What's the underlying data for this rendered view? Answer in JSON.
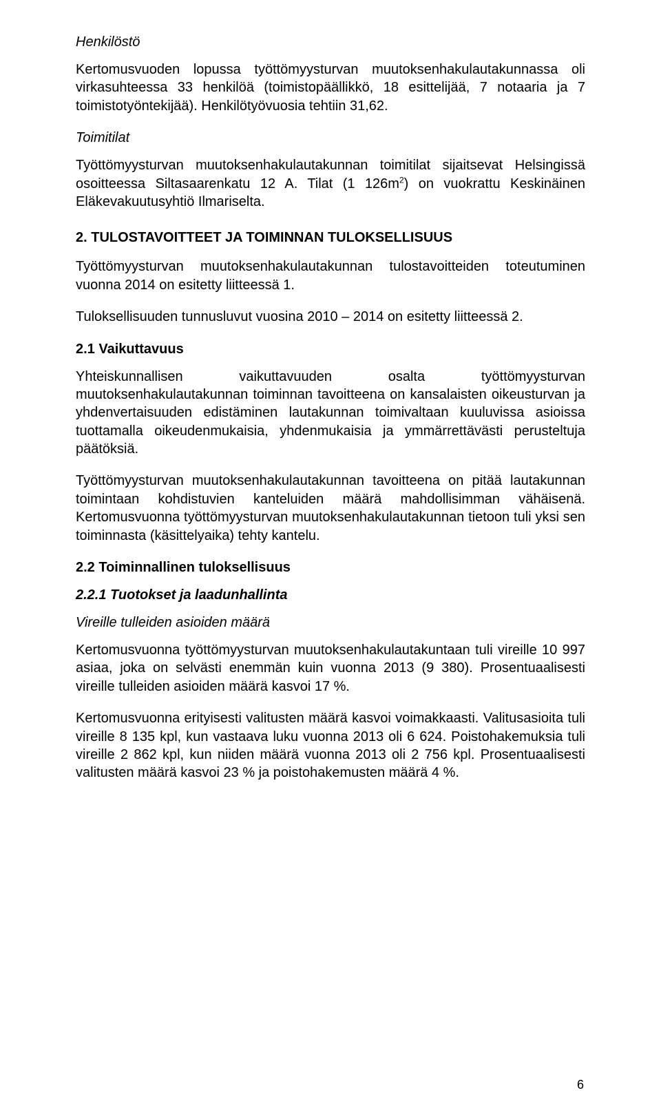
{
  "s1": {
    "heading": "Henkilöstö",
    "p1": "Kertomusvuoden lopussa työttömyysturvan muutoksenhakulautakunnassa oli virkasuhteessa 33 henkilöä (toimistopäällikkö, 18 esittelijää, 7 notaaria ja 7 toimistotyöntekijää). Henkilötyövuosia tehtiin 31,62."
  },
  "s2": {
    "heading": "Toimitilat",
    "p1_a": "Työttömyysturvan muutoksenhakulautakunnan toimitilat sijaitsevat Helsingissä osoitteessa Siltasaarenkatu 12 A. Tilat (1 126m",
    "p1_sup": "2",
    "p1_b": ") on vuokrattu Keskinäinen Eläkevakuutusyhtiö Ilmariselta."
  },
  "s3": {
    "heading": "2. TULOSTAVOITTEET JA TOIMINNAN TULOKSELLISUUS",
    "p1": "Työttömyysturvan muutoksenhakulautakunnan tulostavoitteiden toteutuminen vuonna 2014 on esitetty liitteessä 1.",
    "p2": "Tuloksellisuuden tunnusluvut vuosina 2010 – 2014 on esitetty liitteessä 2."
  },
  "s4": {
    "heading": "2.1 Vaikuttavuus",
    "p1": "Yhteiskunnallisen vaikuttavuuden osalta työttömyysturvan muutoksenhakulautakunnan toiminnan tavoitteena on kansalaisten oikeusturvan ja yhdenvertaisuuden edistäminen lautakunnan toimivaltaan kuuluvissa asioissa tuottamalla oikeudenmukaisia, yhdenmukaisia ja ymmärrettävästi perusteltuja päätöksiä.",
    "p2": "Työttömyysturvan muutoksenhakulautakunnan tavoitteena on pitää lautakunnan toimintaan kohdistuvien kanteluiden määrä mahdollisimman vähäisenä. Kertomusvuonna työttömyysturvan muutoksenhakulautakunnan tietoon tuli yksi sen toiminnasta (käsittelyaika) tehty kantelu."
  },
  "s5": {
    "heading": "2.2 Toiminnallinen tuloksellisuus"
  },
  "s6": {
    "heading": "2.2.1 Tuotokset ja laadunhallinta"
  },
  "s7": {
    "heading": "Vireille tulleiden asioiden määrä",
    "p1": "Kertomusvuonna työttömyysturvan muutoksenhakulautakuntaan tuli vireille 10 997 asiaa, joka on selvästi enemmän kuin vuonna 2013 (9 380). Prosentuaalisesti vireille tulleiden asioiden määrä kasvoi 17 %.",
    "p2": "Kertomusvuonna erityisesti valitusten määrä kasvoi voimakkaasti. Valitusasioita tuli vireille 8 135 kpl, kun vastaava luku vuonna 2013 oli 6 624. Poistohakemuksia tuli vireille 2 862 kpl, kun niiden määrä vuonna 2013 oli 2 756 kpl. Prosentuaalisesti valitusten määrä kasvoi 23 % ja poistohakemusten määrä 4 %."
  },
  "pageNumber": "6"
}
